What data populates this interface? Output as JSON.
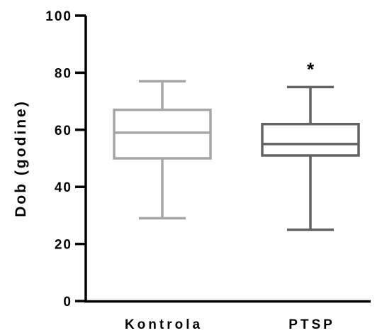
{
  "chart_data": {
    "type": "boxplot",
    "ylabel": "Dob (godine)",
    "ylim": [
      0,
      100
    ],
    "yticks": [
      0,
      20,
      40,
      60,
      80,
      100
    ],
    "grid": false,
    "categories": [
      "Kontrola",
      "PTSP"
    ],
    "boxes": [
      {
        "min": 29,
        "q1": 50,
        "median": 59,
        "q3": 67,
        "max": 77,
        "color": "#a6a6a6"
      },
      {
        "min": 25,
        "q1": 51,
        "median": 55,
        "q3": 62,
        "max": 75,
        "color": "#636363"
      }
    ],
    "annotations": [
      {
        "text": "*",
        "category": "PTSP",
        "y": 84
      }
    ]
  }
}
